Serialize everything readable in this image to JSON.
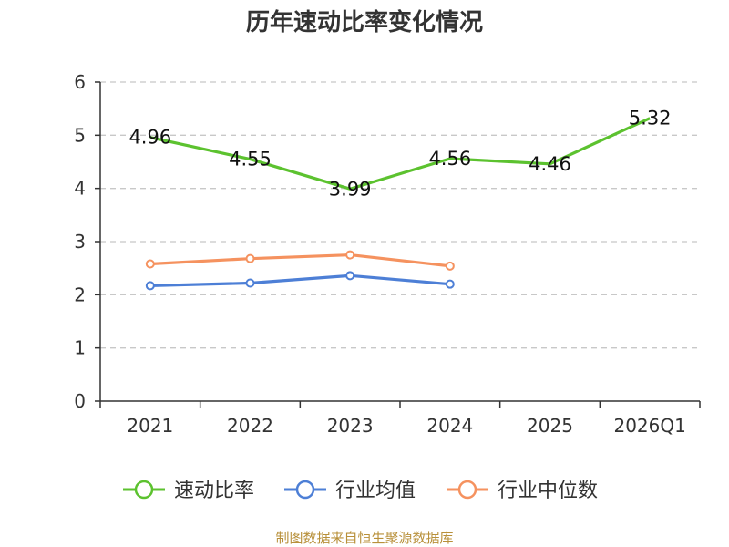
{
  "chart_data": {
    "type": "line",
    "title": "历年速动比率变化情况",
    "categories": [
      "2021",
      "2022",
      "2023",
      "2024",
      "2025",
      "2026Q1"
    ],
    "ylim": [
      0,
      6
    ],
    "yticks": [
      "0",
      "1",
      "2",
      "3",
      "4",
      "5",
      "6"
    ],
    "grid": true,
    "legend_position": "bottom",
    "series": [
      {
        "name": "速动比率",
        "color": "#5cc22f",
        "values": [
          4.96,
          4.55,
          3.99,
          4.56,
          4.46,
          5.32
        ],
        "labels": [
          "4.96",
          "4.55",
          "3.99",
          "4.56",
          "4.46",
          "5.32"
        ]
      },
      {
        "name": "行业均值",
        "color": "#4d7fd6",
        "values": [
          2.17,
          2.22,
          2.36,
          2.2,
          null,
          null
        ]
      },
      {
        "name": "行业中位数",
        "color": "#f5925f",
        "values": [
          2.58,
          2.68,
          2.75,
          2.54,
          null,
          null
        ]
      }
    ],
    "source": "制图数据来自恒生聚源数据库"
  }
}
